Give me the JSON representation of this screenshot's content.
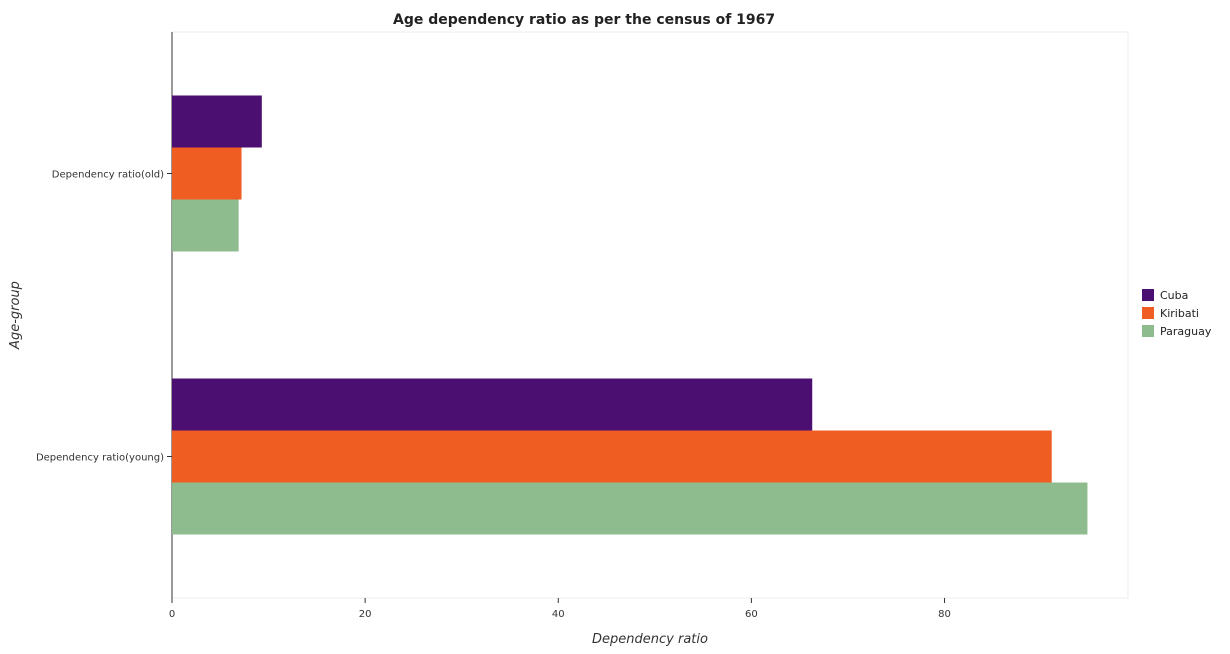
{
  "chart_data": {
    "type": "bar",
    "orientation": "horizontal",
    "title": "Age dependency ratio as per the census of 1967",
    "xlabel": "Dependency ratio",
    "ylabel": "Age-group",
    "categories": [
      "Dependency ratio(old)",
      "Dependency ratio(young)"
    ],
    "series": [
      {
        "name": "Cuba",
        "color": "#4a0f70",
        "values": [
          9.3,
          66.3
        ]
      },
      {
        "name": "Kiribati",
        "color": "#f05d23",
        "values": [
          7.2,
          91.1
        ]
      },
      {
        "name": "Paraguay",
        "color": "#8fbc8f",
        "values": [
          6.9,
          94.8
        ]
      }
    ],
    "xlim": [
      0,
      99
    ],
    "xticks": [
      0,
      20,
      40,
      60,
      80
    ],
    "grid": false,
    "legend_position": "right"
  }
}
